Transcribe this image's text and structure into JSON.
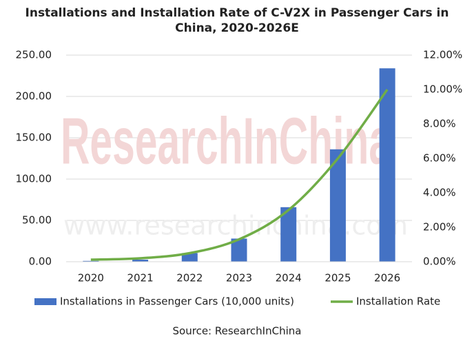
{
  "chart_data": {
    "type": "bar-line",
    "title": "Installations and Installation Rate of C-V2X in Passenger Cars in China, 2020-2026E",
    "watermark": "ResearchInChina",
    "watermark_url": "www.researchinchina.com",
    "source": "Source: ResearchInChina",
    "categories": [
      "2020",
      "2021",
      "2022",
      "2023",
      "2024",
      "2025",
      "2026"
    ],
    "series": [
      {
        "name": "Installations in Passenger Cars (10,000 units)",
        "type": "bar",
        "color": "#4472c4",
        "values": [
          1,
          2.5,
          10.5,
          28,
          66,
          136,
          234
        ]
      },
      {
        "name": "Installation Rate",
        "type": "line",
        "axis": "y2",
        "color": "#70ad47",
        "values": [
          0.12,
          0.2,
          0.5,
          1.3,
          3,
          6,
          10
        ]
      }
    ],
    "ylim": [
      0,
      250
    ],
    "yticks": [
      {
        "value": 0,
        "label": "0.00"
      },
      {
        "value": 50,
        "label": "50.00"
      },
      {
        "value": 100,
        "label": "100.00"
      },
      {
        "value": 150,
        "label": "150.00"
      },
      {
        "value": 200,
        "label": "200.00"
      },
      {
        "value": 250,
        "label": "250.00"
      }
    ],
    "y2lim": [
      0,
      12
    ],
    "y2ticks": [
      {
        "value": 0,
        "label": "0.00%"
      },
      {
        "value": 2,
        "label": "2.00%"
      },
      {
        "value": 4,
        "label": "4.00%"
      },
      {
        "value": 6,
        "label": "6.00%"
      },
      {
        "value": 8,
        "label": "8.00%"
      },
      {
        "value": 10,
        "label": "10.00%"
      },
      {
        "value": 12,
        "label": "12.00%"
      }
    ],
    "grid": true,
    "legend": "bottom"
  }
}
